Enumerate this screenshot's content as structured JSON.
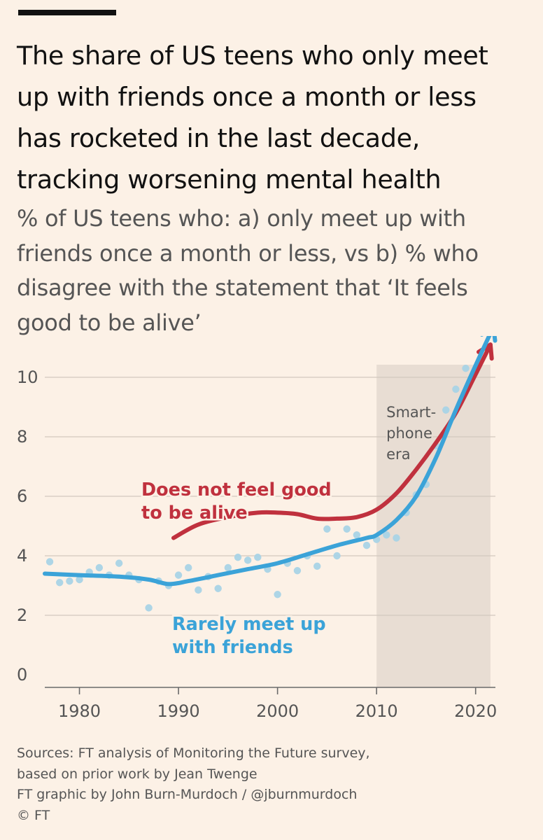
{
  "title": "The share of US teens who only meet up with friends once a month or less has rocketed in the last decade, tracking worsening mental health",
  "subtitle": "% of US teens who: a) only meet up with friends once a month or less, vs b) % who disagree with the statement that ‘It feels good to be alive’",
  "chart_data": {
    "type": "line",
    "x_ticks": [
      1980,
      1990,
      2000,
      2010,
      2020
    ],
    "y_ticks": [
      0,
      2,
      4,
      6,
      8,
      10
    ],
    "xlim": [
      1976.5,
      2022
    ],
    "ylim": [
      0,
      10.8
    ],
    "grid": "horizontal",
    "shaded_region": {
      "x_start": 2010,
      "x_end": 2021.5,
      "label_lines": [
        "Smart-",
        "phone",
        "era"
      ]
    },
    "series": [
      {
        "name": "Does not feel good to be alive",
        "label_lines": [
          "Does not feel good",
          "to be alive"
        ],
        "color": "#c0313e",
        "trend_x": [
          1989.5,
          1992,
          1995,
          1998,
          2000,
          2002,
          2004,
          2006,
          2008,
          2010,
          2012,
          2014,
          2016,
          2018,
          2020,
          2021.5
        ],
        "trend_y": [
          4.6,
          5.05,
          5.3,
          5.45,
          5.45,
          5.4,
          5.25,
          5.25,
          5.3,
          5.55,
          6.1,
          6.9,
          7.8,
          8.8,
          10.1,
          11.1
        ]
      },
      {
        "name": "Rarely meet up with friends",
        "label_lines": [
          "Rarely meet up",
          "with friends"
        ],
        "color": "#3ba3d8",
        "trend_x": [
          1976.5,
          1980,
          1984,
          1987,
          1989,
          1991,
          1994,
          1997,
          2000,
          2003,
          2006,
          2009,
          2010,
          2012,
          2014,
          2016,
          2018,
          2020,
          2021.8
        ],
        "trend_y": [
          3.4,
          3.35,
          3.3,
          3.2,
          3.05,
          3.15,
          3.35,
          3.55,
          3.75,
          4.05,
          4.35,
          4.6,
          4.7,
          5.2,
          6.0,
          7.3,
          8.9,
          10.4,
          11.7
        ],
        "points_x": [
          1977,
          1978,
          1979,
          1980,
          1981,
          1982,
          1983,
          1984,
          1985,
          1986,
          1987,
          1988,
          1989,
          1990,
          1991,
          1992,
          1993,
          1994,
          1995,
          1996,
          1997,
          1998,
          1999,
          2000,
          2001,
          2002,
          2003,
          2004,
          2005,
          2006,
          2007,
          2008,
          2009,
          2010,
          2011,
          2012,
          2013,
          2014,
          2015,
          2016,
          2017,
          2018,
          2019,
          2020,
          2021
        ],
        "points_y": [
          3.8,
          3.1,
          3.15,
          3.2,
          3.45,
          3.6,
          3.35,
          3.75,
          3.35,
          3.2,
          2.25,
          3.15,
          3.0,
          3.35,
          3.6,
          2.85,
          3.3,
          2.9,
          3.6,
          3.95,
          3.85,
          3.95,
          3.55,
          2.7,
          3.75,
          3.5,
          4.0,
          3.65,
          4.9,
          4.0,
          4.9,
          4.7,
          4.35,
          4.55,
          4.7,
          4.6,
          5.45,
          6.05,
          6.4,
          7.7,
          8.9,
          9.6,
          10.3,
          10.2,
          11.0
        ]
      }
    ]
  },
  "footer": {
    "line1": "Sources: FT analysis of Monitoring the Future survey,",
    "line2": "based on prior work by Jean Twenge",
    "line3": "FT graphic by John Burn-Murdoch / @jburnmurdoch",
    "line4": "© FT"
  }
}
